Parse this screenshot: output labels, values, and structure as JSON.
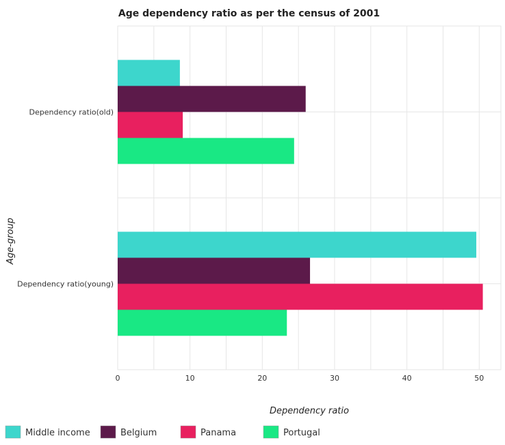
{
  "chart_data": {
    "type": "bar",
    "orientation": "horizontal",
    "title": "Age dependency ratio as per the census of 2001",
    "xlabel": "Dependency ratio",
    "ylabel": "Age-group",
    "xlim": [
      0,
      53
    ],
    "xticks": [
      0,
      10,
      20,
      30,
      40,
      50
    ],
    "categories": [
      "Dependency ratio(old)",
      "Dependency ratio(young)"
    ],
    "series": [
      {
        "name": "Middle income",
        "color": "#3dd6cc",
        "values": [
          8.6,
          49.6
        ]
      },
      {
        "name": "Belgium",
        "color": "#5c1a4a",
        "values": [
          26.0,
          26.6
        ]
      },
      {
        "name": "Panama",
        "color": "#e8205f",
        "values": [
          9.0,
          50.5
        ]
      },
      {
        "name": "Portugal",
        "color": "#19e884",
        "values": [
          24.4,
          23.4
        ]
      }
    ],
    "grid": true,
    "legend_position": "bottom-left"
  }
}
